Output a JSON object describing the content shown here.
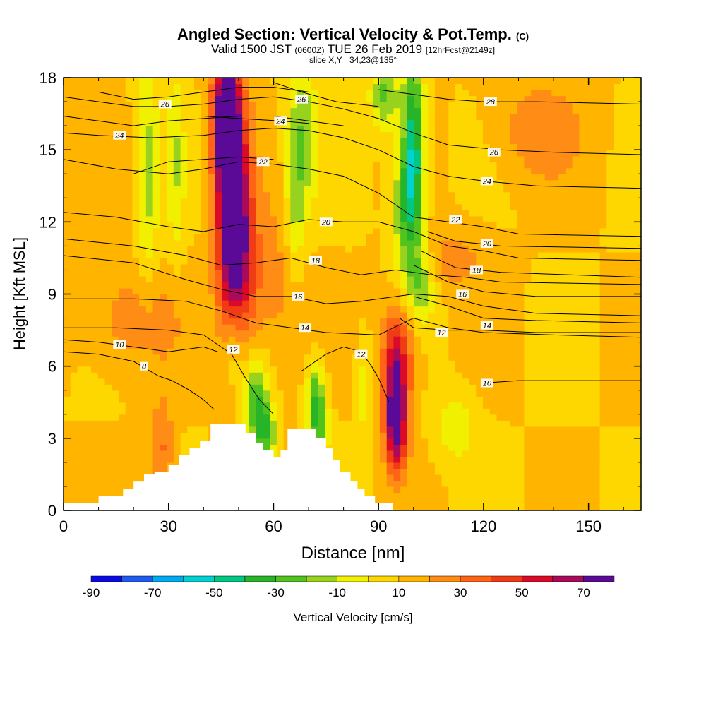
{
  "header": {
    "title_main": "Angled Section: Vertical Velocity & Pot.Temp.",
    "title_tag": "(C)",
    "valid_prefix": "Valid 1500 JST",
    "valid_utc": "(0600Z)",
    "valid_date": "TUE 26 Feb 2019",
    "valid_fcst": "[12hrFcst@2149z]",
    "slice": "slice X,Y= 34,23@135°"
  },
  "chart_data": {
    "type": "heatmap",
    "xlabel": "Distance [nm]",
    "ylabel": "Height [Kft MSL]",
    "xlim": [
      0,
      165
    ],
    "ylim": [
      0,
      18
    ],
    "xticks": [
      "0",
      "30",
      "60",
      "90",
      "120",
      "150"
    ],
    "xtick_values": [
      0,
      30,
      60,
      90,
      120,
      150
    ],
    "yticks": [
      "0",
      "3",
      "6",
      "9",
      "12",
      "15",
      "18"
    ],
    "ytick_values": [
      0,
      3,
      6,
      9,
      12,
      15,
      18
    ],
    "colorbar": {
      "label": "Vertical Velocity [cm/s]",
      "range": [
        -90,
        80
      ],
      "tick_labels": [
        "-90",
        "-70",
        "-50",
        "-30",
        "-10",
        "10",
        "30",
        "50",
        "70"
      ],
      "tick_values": [
        -90,
        -70,
        -50,
        -30,
        -10,
        10,
        30,
        50,
        70
      ],
      "colors": [
        "#0a0ae6",
        "#1e5af0",
        "#00aaf0",
        "#00d2d2",
        "#00c882",
        "#28b428",
        "#50c31e",
        "#96d21e",
        "#f0f000",
        "#ffd700",
        "#ffb400",
        "#ff8c14",
        "#ff6414",
        "#f03c14",
        "#dc0a28",
        "#aa0a5a",
        "#5a0a96"
      ]
    },
    "background_velocity": 10,
    "velocity_features": [
      {
        "x": 48,
        "y": 13.5,
        "sx": 3,
        "sy": 3.5,
        "value": 75
      },
      {
        "x": 50,
        "y": 10,
        "sx": 3.5,
        "sy": 3,
        "value": 45
      },
      {
        "x": 46,
        "y": 16.5,
        "sx": 2.5,
        "sy": 2,
        "value": 60
      },
      {
        "x": 95,
        "y": 5,
        "sx": 2.5,
        "sy": 1.8,
        "value": 55
      },
      {
        "x": 95,
        "y": 3.3,
        "sx": 2,
        "sy": 1.2,
        "value": 45
      },
      {
        "x": 96,
        "y": 6.8,
        "sx": 4,
        "sy": 1.5,
        "value": 25
      },
      {
        "x": 28,
        "y": 2.5,
        "sx": 2.5,
        "sy": 1.5,
        "value": 25
      },
      {
        "x": 136,
        "y": 15.8,
        "sx": 9,
        "sy": 1.5,
        "value": 20
      },
      {
        "x": 110,
        "y": 10.5,
        "sx": 8,
        "sy": 1,
        "value": 18
      },
      {
        "x": 20,
        "y": 8,
        "sx": 10,
        "sy": 1.5,
        "value": 20
      },
      {
        "x": 60,
        "y": 9.5,
        "sx": 6,
        "sy": 2.5,
        "value": 18
      },
      {
        "x": 100,
        "y": 15.5,
        "sx": 2,
        "sy": 2.5,
        "value": -50
      },
      {
        "x": 98,
        "y": 12.5,
        "sx": 3,
        "sy": 2,
        "value": -35
      },
      {
        "x": 102,
        "y": 9.5,
        "sx": 3,
        "sy": 1.2,
        "value": -25
      },
      {
        "x": 92,
        "y": 17.3,
        "sx": 3,
        "sy": 1,
        "value": -30
      },
      {
        "x": 68,
        "y": 15.5,
        "sx": 3,
        "sy": 2.5,
        "value": -25
      },
      {
        "x": 66,
        "y": 12,
        "sx": 2,
        "sy": 2,
        "value": -15
      },
      {
        "x": 24,
        "y": 14,
        "sx": 2.2,
        "sy": 3.5,
        "value": -20
      },
      {
        "x": 32,
        "y": 14.5,
        "sx": 1.8,
        "sy": 3,
        "value": -15
      },
      {
        "x": 49,
        "y": 7,
        "sx": 2.5,
        "sy": 1.5,
        "value": -25
      },
      {
        "x": 55,
        "y": 4.5,
        "sx": 2.5,
        "sy": 1.3,
        "value": -40
      },
      {
        "x": 58,
        "y": 3.2,
        "sx": 2,
        "sy": 0.8,
        "value": -30
      },
      {
        "x": 72,
        "y": 4.8,
        "sx": 1.8,
        "sy": 1,
        "value": -35
      },
      {
        "x": 73,
        "y": 3.4,
        "sx": 2,
        "sy": 0.8,
        "value": -25
      },
      {
        "x": 112,
        "y": 3.5,
        "sx": 4,
        "sy": 1,
        "value": -15
      },
      {
        "x": 86,
        "y": 5,
        "sx": 1.5,
        "sy": 1.5,
        "value": -12
      }
    ],
    "theta_contours": [
      {
        "label": "8",
        "points": [
          [
            0,
            6.6
          ],
          [
            10,
            6.5
          ],
          [
            20,
            6.2
          ],
          [
            27,
            5.6
          ],
          [
            31,
            5.4
          ],
          [
            36,
            5.0
          ],
          [
            40,
            4.6
          ],
          [
            43,
            4.2
          ]
        ],
        "label_at": [
          23,
          6.0
        ]
      },
      {
        "label": "10",
        "points": [
          [
            0,
            7.1
          ],
          [
            10,
            7.0
          ],
          [
            20,
            6.8
          ],
          [
            30,
            6.6
          ],
          [
            40,
            6.8
          ],
          [
            44,
            6.6
          ]
        ],
        "label_at": [
          16,
          6.9
        ]
      },
      {
        "label": "10",
        "points": [
          [
            100,
            5.3
          ],
          [
            110,
            5.3
          ],
          [
            120,
            5.3
          ],
          [
            130,
            5.4
          ],
          [
            140,
            5.4
          ],
          [
            150,
            5.4
          ],
          [
            165,
            5.4
          ]
        ],
        "label_at": [
          121,
          5.3
        ]
      },
      {
        "label": "12",
        "points": [
          [
            0,
            7.6
          ],
          [
            15,
            7.6
          ],
          [
            30,
            7.5
          ],
          [
            40,
            7.3
          ],
          [
            44,
            6.9
          ],
          [
            48,
            6.5
          ],
          [
            52,
            5.5
          ],
          [
            56,
            4.6
          ],
          [
            60,
            4.0
          ]
        ],
        "label_at": [
          48.5,
          6.7
        ]
      },
      {
        "label": "12",
        "points": [
          [
            68,
            5.8
          ],
          [
            75,
            6.5
          ],
          [
            80,
            6.8
          ],
          [
            85,
            6.6
          ],
          [
            88,
            6.0
          ],
          [
            90,
            5.5
          ],
          [
            93,
            4.5
          ]
        ],
        "label_at": [
          85,
          6.5
        ]
      },
      {
        "label": "12",
        "points": [
          [
            96,
            8.0
          ],
          [
            100,
            7.6
          ],
          [
            110,
            7.5
          ],
          [
            120,
            7.5
          ],
          [
            135,
            7.4
          ],
          [
            150,
            7.4
          ],
          [
            165,
            7.4
          ]
        ],
        "label_at": [
          108,
          7.4
        ]
      },
      {
        "label": "14",
        "points": [
          [
            0,
            8.8
          ],
          [
            20,
            8.8
          ],
          [
            35,
            8.7
          ],
          [
            45,
            8.3
          ],
          [
            55,
            7.8
          ],
          [
            65,
            7.6
          ],
          [
            75,
            7.4
          ],
          [
            90,
            7.3
          ],
          [
            100,
            8.0
          ],
          [
            110,
            7.6
          ],
          [
            120,
            7.4
          ],
          [
            140,
            7.3
          ],
          [
            165,
            7.2
          ]
        ],
        "label_at": [
          69,
          7.6
        ]
      },
      {
        "label": "14",
        "points": [
          [
            100,
            8.9
          ],
          [
            110,
            8.5
          ],
          [
            120,
            8.0
          ],
          [
            135,
            7.9
          ],
          [
            165,
            7.8
          ]
        ],
        "label_at": [
          121,
          7.7
        ]
      },
      {
        "label": "16",
        "points": [
          [
            0,
            10.6
          ],
          [
            20,
            10.3
          ],
          [
            35,
            9.6
          ],
          [
            45,
            9.2
          ],
          [
            55,
            8.9
          ],
          [
            65,
            8.9
          ],
          [
            75,
            8.6
          ],
          [
            85,
            8.7
          ],
          [
            95,
            8.9
          ],
          [
            100,
            9.0
          ],
          [
            110,
            8.9
          ],
          [
            120,
            8.5
          ],
          [
            135,
            8.2
          ],
          [
            165,
            8.1
          ]
        ],
        "label_at": [
          67,
          8.9
        ]
      },
      {
        "label": "16",
        "points": [
          [
            100,
            10.2
          ],
          [
            110,
            9.5
          ],
          [
            120,
            9.1
          ],
          [
            135,
            8.9
          ],
          [
            165,
            8.9
          ]
        ],
        "label_at": [
          114,
          9.0
        ]
      },
      {
        "label": "18",
        "points": [
          [
            0,
            11.3
          ],
          [
            20,
            11.0
          ],
          [
            35,
            10.6
          ],
          [
            45,
            10.2
          ],
          [
            55,
            10.3
          ],
          [
            65,
            10.5
          ],
          [
            75,
            10.1
          ],
          [
            85,
            9.8
          ],
          [
            95,
            10.0
          ],
          [
            105,
            9.8
          ],
          [
            115,
            9.7
          ],
          [
            125,
            9.5
          ],
          [
            165,
            9.4
          ]
        ],
        "label_at": [
          72,
          10.4
        ]
      },
      {
        "label": "18",
        "points": [
          [
            102,
            10.8
          ],
          [
            112,
            10.1
          ],
          [
            125,
            9.9
          ],
          [
            165,
            9.7
          ]
        ],
        "label_at": [
          118,
          10.0
        ]
      },
      {
        "label": "20",
        "points": [
          [
            0,
            12.4
          ],
          [
            15,
            12.2
          ],
          [
            30,
            11.8
          ],
          [
            40,
            11.6
          ],
          [
            50,
            11.9
          ],
          [
            60,
            11.8
          ],
          [
            70,
            12.1
          ],
          [
            80,
            12.0
          ],
          [
            90,
            12.0
          ],
          [
            100,
            11.6
          ],
          [
            110,
            11.0
          ],
          [
            120,
            10.8
          ],
          [
            130,
            10.5
          ],
          [
            165,
            10.4
          ]
        ],
        "label_at": [
          75,
          12.0
        ]
      },
      {
        "label": "20",
        "points": [
          [
            104,
            11.6
          ],
          [
            112,
            11.2
          ],
          [
            125,
            11.0
          ],
          [
            165,
            10.9
          ]
        ],
        "label_at": [
          121,
          11.1
        ]
      },
      {
        "label": "22",
        "points": [
          [
            0,
            14.6
          ],
          [
            15,
            14.2
          ],
          [
            30,
            14.0
          ],
          [
            40,
            14.2
          ],
          [
            50,
            14.5
          ],
          [
            60,
            14.4
          ],
          [
            70,
            14.2
          ],
          [
            80,
            13.9
          ],
          [
            90,
            13.2
          ],
          [
            100,
            12.2
          ],
          [
            110,
            12.0
          ],
          [
            120,
            11.8
          ],
          [
            130,
            11.5
          ],
          [
            165,
            11.4
          ]
        ],
        "label_at": [
          112,
          12.1
        ]
      },
      {
        "label": "22",
        "points": [
          [
            20,
            14.0
          ],
          [
            30,
            14.5
          ],
          [
            40,
            14.6
          ],
          [
            50,
            14.7
          ],
          [
            60,
            14.6
          ]
        ],
        "label_at": [
          57,
          14.5
        ]
      },
      {
        "label": "24",
        "points": [
          [
            0,
            15.7
          ],
          [
            10,
            15.6
          ],
          [
            25,
            15.5
          ],
          [
            40,
            15.6
          ],
          [
            50,
            15.8
          ],
          [
            60,
            15.9
          ],
          [
            70,
            15.8
          ],
          [
            80,
            15.5
          ],
          [
            90,
            15.0
          ],
          [
            100,
            14.3
          ],
          [
            110,
            13.9
          ],
          [
            120,
            13.7
          ],
          [
            135,
            13.5
          ],
          [
            165,
            13.4
          ]
        ],
        "label_at": [
          121,
          13.7
        ]
      },
      {
        "label": "24",
        "points": [
          [
            0,
            16.4
          ],
          [
            10,
            16.2
          ],
          [
            20,
            16.0
          ],
          [
            30,
            16.2
          ],
          [
            40,
            16.3
          ],
          [
            50,
            16.4
          ],
          [
            60,
            16.4
          ],
          [
            70,
            16.2
          ],
          [
            80,
            16.0
          ]
        ],
        "label_at": [
          16,
          15.6
        ]
      },
      {
        "label": "24",
        "points": [
          [
            40,
            16.4
          ],
          [
            50,
            16.3
          ],
          [
            62,
            16.2
          ],
          [
            70,
            16.1
          ]
        ],
        "label_at": [
          62,
          16.2
        ]
      },
      {
        "label": "26",
        "points": [
          [
            0,
            17.2
          ],
          [
            10,
            17.0
          ],
          [
            20,
            16.8
          ],
          [
            30,
            16.8
          ],
          [
            40,
            16.9
          ],
          [
            50,
            17.1
          ],
          [
            60,
            17.2
          ],
          [
            70,
            17.0
          ],
          [
            80,
            16.7
          ],
          [
            90,
            16.3
          ],
          [
            100,
            15.7
          ],
          [
            110,
            15.2
          ],
          [
            125,
            15.0
          ],
          [
            140,
            14.9
          ],
          [
            165,
            14.8
          ]
        ],
        "label_at": [
          123,
          14.9
        ]
      },
      {
        "label": "26",
        "points": [
          [
            10,
            17.4
          ],
          [
            20,
            17.1
          ],
          [
            30,
            17.2
          ],
          [
            40,
            17.4
          ],
          [
            50,
            17.6
          ],
          [
            60,
            17.6
          ],
          [
            70,
            17.4
          ]
        ],
        "label_at": [
          29,
          16.9
        ]
      },
      {
        "label": "26",
        "points": [
          [
            60,
            17.8
          ],
          [
            68,
            17.4
          ],
          [
            78,
            17.0
          ],
          [
            90,
            16.8
          ]
        ],
        "label_at": [
          68,
          17.1
        ]
      },
      {
        "label": "28",
        "points": [
          [
            90,
            17.5
          ],
          [
            100,
            17.3
          ],
          [
            110,
            17.1
          ],
          [
            120,
            17.0
          ],
          [
            135,
            17.0
          ],
          [
            165,
            16.9
          ]
        ],
        "label_at": [
          122,
          17.0
        ]
      }
    ],
    "terrain_steps": [
      [
        0,
        0.3
      ],
      [
        10,
        0.6
      ],
      [
        17,
        0.9
      ],
      [
        20,
        1.2
      ],
      [
        23,
        1.5
      ],
      [
        26,
        1.6
      ],
      [
        30,
        1.9
      ],
      [
        33,
        2.3
      ],
      [
        36,
        2.6
      ],
      [
        39,
        2.9
      ],
      [
        42,
        3.6
      ],
      [
        48,
        3.6
      ],
      [
        52,
        3.2
      ],
      [
        55,
        2.8
      ],
      [
        57,
        2.5
      ],
      [
        60,
        2.2
      ],
      [
        62,
        2.5
      ],
      [
        64,
        3.4
      ],
      [
        70,
        3.4
      ],
      [
        72,
        3.0
      ],
      [
        75,
        2.6
      ],
      [
        77,
        2.1
      ],
      [
        79,
        1.6
      ],
      [
        82,
        1.2
      ],
      [
        84,
        0.9
      ],
      [
        86,
        0.6
      ],
      [
        89,
        0.3
      ],
      [
        93,
        0.3
      ]
    ]
  }
}
